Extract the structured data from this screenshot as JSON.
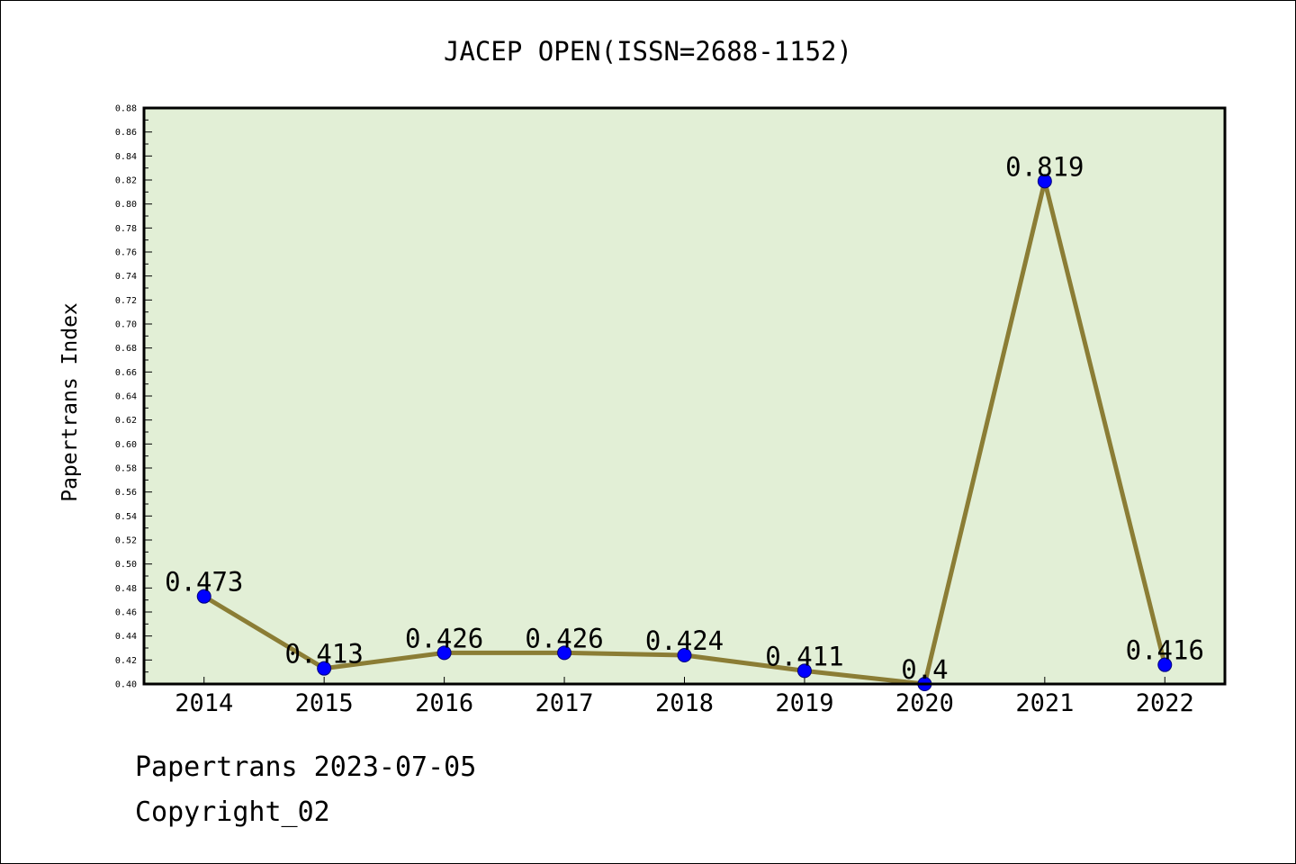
{
  "chart_data": {
    "type": "line",
    "title": "JACEP OPEN(ISSN=2688-1152)",
    "xlabel": "",
    "ylabel": "Papertrans Index",
    "categories": [
      "2014",
      "2015",
      "2016",
      "2017",
      "2018",
      "2019",
      "2020",
      "2021",
      "2022"
    ],
    "values": [
      0.473,
      0.413,
      0.426,
      0.426,
      0.424,
      0.411,
      0.4,
      0.819,
      0.416
    ],
    "data_labels": [
      "0.473",
      "0.413",
      "0.426",
      "0.426",
      "0.424",
      "0.411",
      "0.4",
      "0.819",
      "0.416"
    ],
    "ylim": [
      0.4,
      0.88
    ],
    "yticks": [
      "0.40",
      "0.42",
      "0.44",
      "0.46",
      "0.48",
      "0.50",
      "0.52",
      "0.54",
      "0.56",
      "0.58",
      "0.60",
      "0.62",
      "0.64",
      "0.66",
      "0.68",
      "0.70",
      "0.72",
      "0.74",
      "0.76",
      "0.78",
      "0.80",
      "0.82",
      "0.84",
      "0.86",
      "0.88"
    ],
    "grid": false,
    "colors": {
      "plot_background": "#e2efd6",
      "line": "#8b7d35",
      "marker": "#0000ff"
    }
  },
  "footer": {
    "date_line": "Papertrans 2023-07-05",
    "copyright_line": "Copyright_02"
  }
}
